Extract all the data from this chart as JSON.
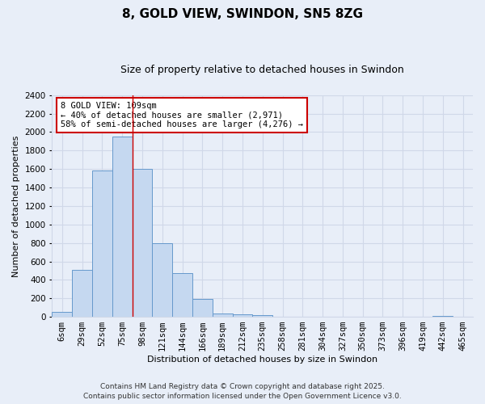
{
  "title": "8, GOLD VIEW, SWINDON, SN5 8ZG",
  "subtitle": "Size of property relative to detached houses in Swindon",
  "xlabel": "Distribution of detached houses by size in Swindon",
  "ylabel": "Number of detached properties",
  "footer": "Contains HM Land Registry data © Crown copyright and database right 2025.\nContains public sector information licensed under the Open Government Licence v3.0.",
  "categories": [
    "6sqm",
    "29sqm",
    "52sqm",
    "75sqm",
    "98sqm",
    "121sqm",
    "144sqm",
    "166sqm",
    "189sqm",
    "212sqm",
    "235sqm",
    "258sqm",
    "281sqm",
    "304sqm",
    "327sqm",
    "350sqm",
    "373sqm",
    "396sqm",
    "419sqm",
    "442sqm",
    "465sqm"
  ],
  "values": [
    55,
    510,
    1580,
    1950,
    1600,
    800,
    475,
    190,
    40,
    30,
    15,
    5,
    0,
    0,
    0,
    0,
    0,
    0,
    0,
    10,
    0
  ],
  "bar_color": "#c5d8f0",
  "bar_edgecolor": "#6699cc",
  "annotation_text": "8 GOLD VIEW: 109sqm\n← 40% of detached houses are smaller (2,971)\n58% of semi-detached houses are larger (4,276) →",
  "annotation_box_color": "#ffffff",
  "annotation_border_color": "#cc0000",
  "redline_x": 4.5,
  "ylim": [
    0,
    2400
  ],
  "yticks": [
    0,
    200,
    400,
    600,
    800,
    1000,
    1200,
    1400,
    1600,
    1800,
    2000,
    2200,
    2400
  ],
  "bg_color": "#e8eef8",
  "grid_color": "#d0d8e8",
  "title_fontsize": 11,
  "subtitle_fontsize": 9,
  "axis_label_fontsize": 8,
  "tick_fontsize": 7.5,
  "footer_fontsize": 6.5,
  "annotation_fontsize": 7.5
}
